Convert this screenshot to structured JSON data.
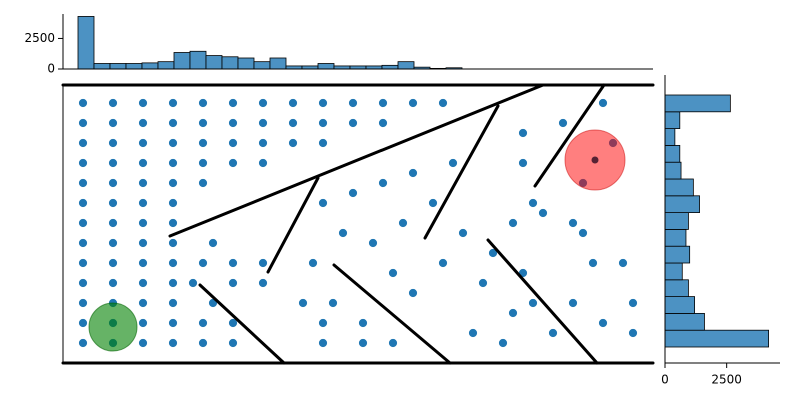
{
  "chart_data": [
    {
      "type": "scatter",
      "xlim": [
        0,
        59
      ],
      "ylim": [
        0,
        27.8
      ],
      "color": "#1f77b4",
      "x": [
        2,
        5,
        8,
        11,
        14,
        17,
        20,
        23,
        26,
        29,
        32,
        35,
        38,
        2,
        5,
        8,
        11,
        14,
        17,
        20,
        23,
        26,
        29,
        32,
        2,
        5,
        8,
        11,
        14,
        17,
        20,
        23,
        26,
        2,
        5,
        8,
        11,
        14,
        17,
        20,
        2,
        5,
        8,
        11,
        14,
        2,
        5,
        8,
        11,
        2,
        5,
        8,
        11,
        2,
        5,
        8,
        11,
        15,
        2,
        5,
        8,
        11,
        14,
        17,
        20,
        2,
        5,
        8,
        11,
        13,
        17,
        20,
        2,
        5,
        8,
        11,
        15,
        24,
        27,
        2,
        5,
        8,
        11,
        14,
        17,
        26,
        30,
        2,
        5,
        8,
        11,
        14,
        17,
        26,
        30,
        33,
        26,
        29,
        32,
        35,
        28,
        31,
        34,
        37,
        39,
        25,
        33,
        35,
        38,
        40,
        42,
        41,
        44,
        45,
        43,
        46,
        47,
        45,
        49,
        51,
        53,
        46,
        50,
        55,
        46,
        52,
        48,
        51,
        54,
        57,
        56,
        52,
        54,
        57,
        47
      ],
      "y": [
        26,
        26,
        26,
        26,
        26,
        26,
        26,
        26,
        26,
        26,
        26,
        26,
        26,
        24,
        24,
        24,
        24,
        24,
        24,
        24,
        24,
        24,
        24,
        24,
        22,
        22,
        22,
        22,
        22,
        22,
        22,
        22,
        22,
        20,
        20,
        20,
        20,
        20,
        20,
        20,
        18,
        18,
        18,
        18,
        18,
        16,
        16,
        16,
        16,
        14,
        14,
        14,
        14,
        12,
        12,
        12,
        12,
        12,
        10,
        10,
        10,
        10,
        10,
        10,
        10,
        8,
        8,
        8,
        8,
        8,
        8,
        8,
        6,
        6,
        6,
        6,
        6,
        6,
        6,
        4,
        4,
        4,
        4,
        4,
        4,
        4,
        4,
        2,
        2,
        2,
        2,
        2,
        2,
        2,
        2,
        2,
        16,
        17,
        18,
        19,
        13,
        12,
        14,
        16,
        20,
        10,
        9,
        7,
        10,
        13,
        8,
        3,
        2,
        5,
        11,
        9,
        16,
        14,
        3,
        6,
        10,
        23,
        24,
        22,
        20,
        18,
        15,
        14,
        4,
        6,
        10,
        13,
        26,
        3,
        6
      ]
    },
    {
      "type": "histogram",
      "color": "#4c92c3",
      "ylim": [
        0,
        4500
      ],
      "yticks": [
        0,
        2500
      ],
      "bins": [
        1.5,
        3.1,
        4.7,
        6.3,
        7.9,
        9.5,
        11.1,
        12.7,
        14.3,
        15.9,
        17.5,
        19.1,
        20.7,
        22.3,
        23.9,
        25.5,
        27.1,
        28.7,
        30.3,
        31.9,
        33.5,
        35.1,
        36.7,
        38.3,
        39.9
      ],
      "counts": [
        4300,
        450,
        450,
        450,
        500,
        600,
        1350,
        1450,
        1100,
        1000,
        900,
        600,
        900,
        250,
        250,
        450,
        250,
        250,
        250,
        300,
        600,
        150,
        50,
        100
      ]
    },
    {
      "type": "histogram-horizontal",
      "color": "#4c92c3",
      "xlim": [
        0,
        4500
      ],
      "xticks": [
        0,
        2500
      ],
      "bins": [
        1.6,
        3.28,
        4.96,
        6.64,
        8.32,
        10,
        11.68,
        13.36,
        15.04,
        16.72,
        18.4,
        20.08,
        21.76,
        23.44,
        25.12,
        26.8
      ],
      "counts": [
        4200,
        1600,
        1200,
        950,
        700,
        1000,
        850,
        950,
        1400,
        1150,
        650,
        600,
        400,
        600,
        2650
      ]
    }
  ]
}
